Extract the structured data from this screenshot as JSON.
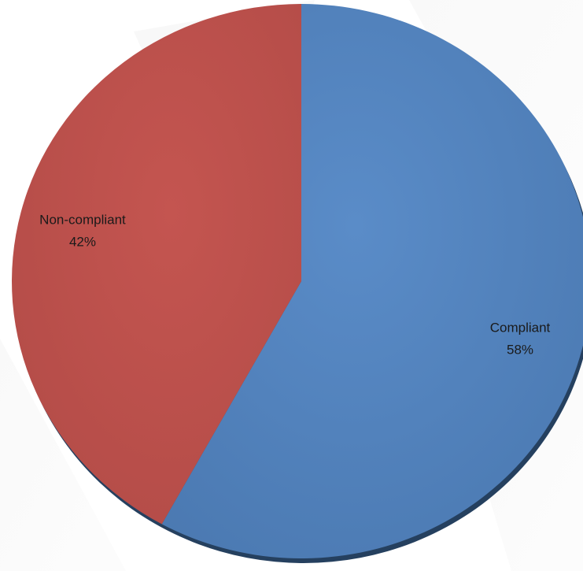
{
  "chart_data": {
    "type": "pie",
    "slices": [
      {
        "label": "Compliant",
        "value": 58,
        "value_label": "58%",
        "color": "#4F81BD"
      },
      {
        "label": "Non-compliant",
        "value": 42,
        "value_label": "42%",
        "color": "#C0504D"
      }
    ],
    "start_angle": "12 o'clock",
    "direction": "clockwise",
    "style": "3d-shaded"
  }
}
